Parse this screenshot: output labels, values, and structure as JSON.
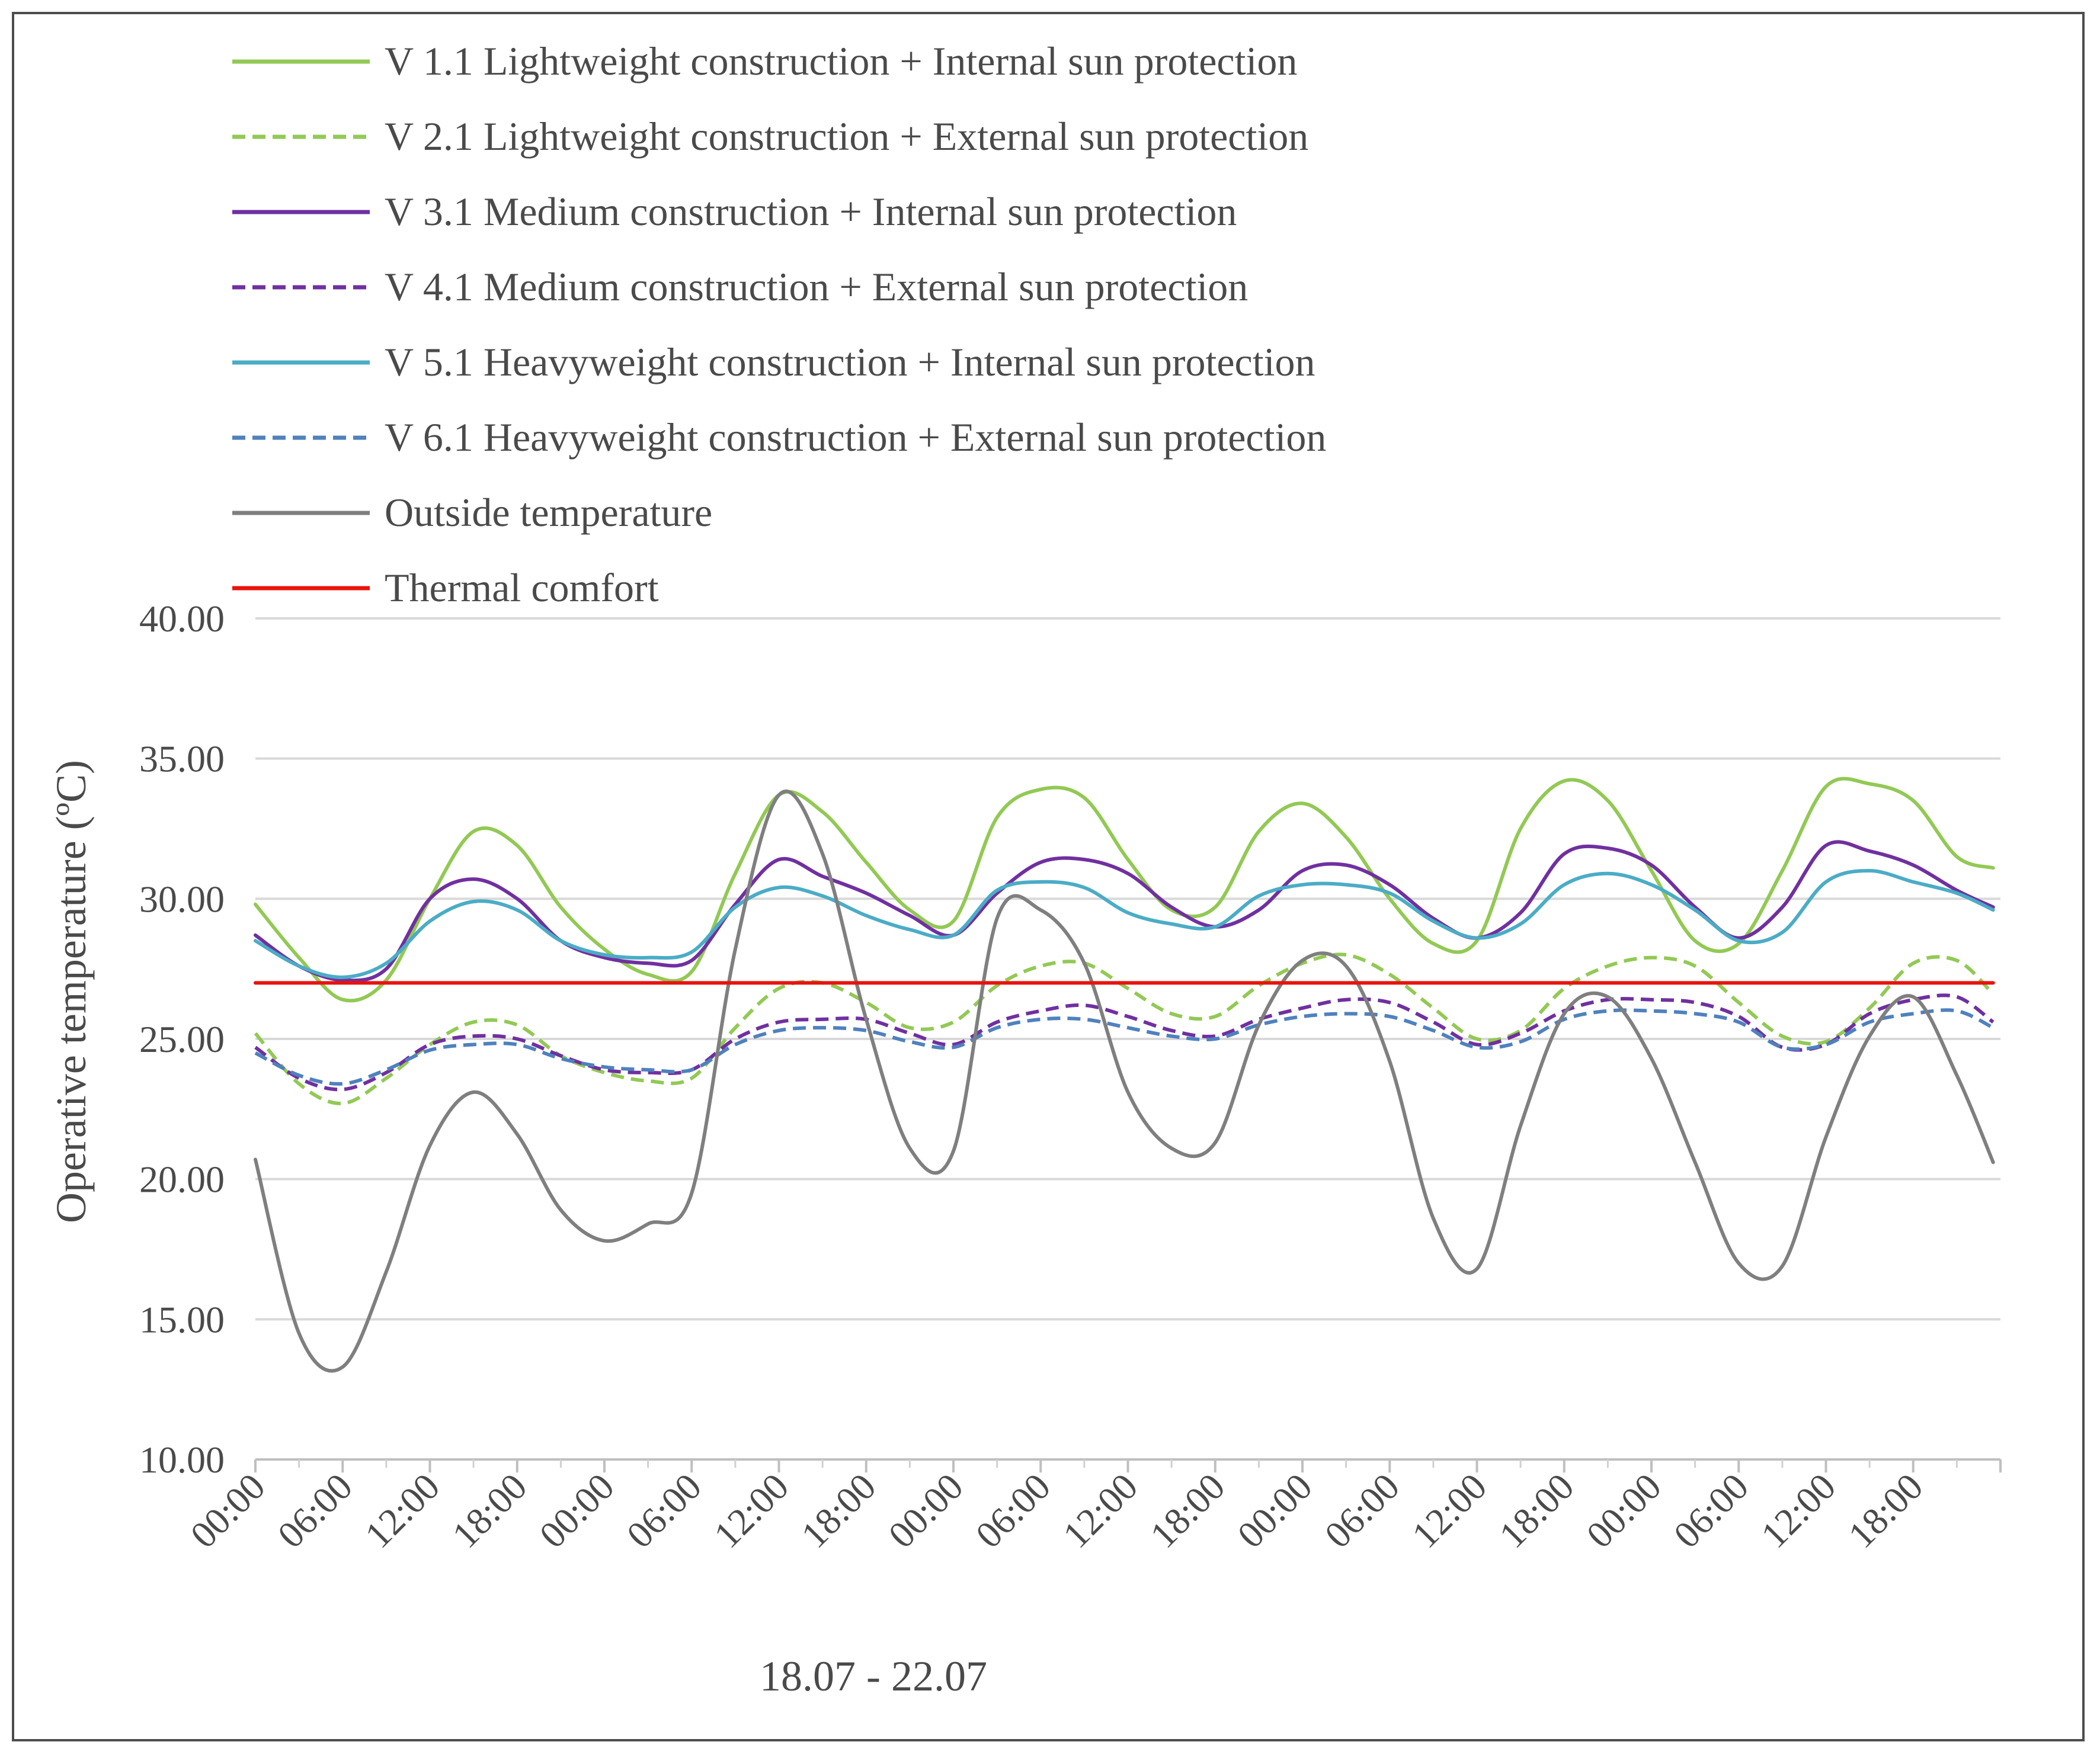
{
  "chart_data": {
    "type": "line",
    "title": "",
    "xlabel": "18.07 - 22.07",
    "ylabel": "Operative temperature (ºC)",
    "ylim": [
      10,
      40
    ],
    "yticks": [
      "10.00",
      "15.00",
      "20.00",
      "25.00",
      "30.00",
      "35.00",
      "40.00"
    ],
    "ytick_values": [
      10,
      15,
      20,
      25,
      30,
      35,
      40
    ],
    "xticks": [
      "00:00",
      "06:00",
      "12:00",
      "18:00",
      "00:00",
      "06:00",
      "12:00",
      "18:00",
      "00:00",
      "06:00",
      "12:00",
      "18:00",
      "00:00",
      "06:00",
      "12:00",
      "18:00",
      "00:00",
      "06:00",
      "12:00",
      "18:00"
    ],
    "xtick_hours": [
      0,
      6,
      12,
      18,
      24,
      30,
      36,
      42,
      48,
      54,
      60,
      66,
      72,
      78,
      84,
      90,
      96,
      102,
      108,
      114
    ],
    "xlim": [
      0,
      120
    ],
    "grid": true,
    "legend_position": "top-left",
    "series": [
      {
        "name": "V 1.1 Lightweight construction + Internal sun protection",
        "color": "#92c954",
        "dash": "solid",
        "x": [
          0,
          3,
          6,
          9,
          12,
          15,
          18,
          21,
          24,
          27,
          30,
          33,
          36,
          39,
          42,
          45,
          48,
          51,
          54,
          57,
          60,
          63,
          66,
          69,
          72,
          75,
          78,
          81,
          84,
          87,
          90,
          93,
          96,
          99,
          102,
          105,
          108,
          111,
          114,
          117,
          119.5
        ],
        "values": [
          29.8,
          27.9,
          26.4,
          27.1,
          30.0,
          32.4,
          31.9,
          29.7,
          28.2,
          27.3,
          27.4,
          30.9,
          33.7,
          33.1,
          31.3,
          29.6,
          29.2,
          32.9,
          33.9,
          33.6,
          31.4,
          29.6,
          29.7,
          32.4,
          33.4,
          32.2,
          30.0,
          28.4,
          28.5,
          32.5,
          34.2,
          33.5,
          31.0,
          28.5,
          28.4,
          31.0,
          34.0,
          34.1,
          33.5,
          31.5,
          31.1
        ]
      },
      {
        "name": "V 2.1 Lightweight construction + External sun protection",
        "color": "#92c954",
        "dash": "dashed",
        "x": [
          0,
          3,
          6,
          9,
          12,
          15,
          18,
          21,
          24,
          27,
          30,
          33,
          36,
          39,
          42,
          45,
          48,
          51,
          54,
          57,
          60,
          63,
          66,
          69,
          72,
          75,
          78,
          81,
          84,
          87,
          90,
          93,
          96,
          99,
          102,
          105,
          108,
          111,
          114,
          117,
          119.5
        ],
        "values": [
          25.2,
          23.4,
          22.7,
          23.6,
          24.8,
          25.6,
          25.5,
          24.4,
          23.8,
          23.5,
          23.6,
          25.4,
          26.8,
          27.0,
          26.3,
          25.4,
          25.6,
          26.9,
          27.6,
          27.7,
          26.8,
          25.9,
          25.8,
          26.9,
          27.7,
          28.0,
          27.3,
          26.1,
          25.0,
          25.3,
          26.8,
          27.6,
          27.9,
          27.6,
          26.3,
          25.1,
          24.9,
          26.1,
          27.7,
          27.8,
          26.6
        ]
      },
      {
        "name": "V 3.1 Medium construction + Internal sun protection",
        "color": "#7030a0",
        "dash": "solid",
        "x": [
          0,
          3,
          6,
          9,
          12,
          15,
          18,
          21,
          24,
          27,
          30,
          33,
          36,
          39,
          42,
          45,
          48,
          51,
          54,
          57,
          60,
          63,
          66,
          69,
          72,
          75,
          78,
          81,
          84,
          87,
          90,
          93,
          96,
          99,
          102,
          105,
          108,
          111,
          114,
          117,
          119.5
        ],
        "values": [
          28.7,
          27.6,
          27.1,
          27.5,
          30.0,
          30.7,
          30.0,
          28.5,
          27.9,
          27.7,
          27.8,
          29.8,
          31.4,
          30.8,
          30.2,
          29.4,
          28.7,
          30.2,
          31.3,
          31.4,
          30.9,
          29.7,
          29.0,
          29.6,
          31.0,
          31.2,
          30.5,
          29.3,
          28.6,
          29.5,
          31.6,
          31.8,
          31.2,
          29.7,
          28.6,
          29.7,
          31.9,
          31.7,
          31.2,
          30.3,
          29.7
        ]
      },
      {
        "name": "V 4.1 Medium construction + External sun protection",
        "color": "#7030a0",
        "dash": "dashed",
        "x": [
          0,
          3,
          6,
          9,
          12,
          15,
          18,
          21,
          24,
          27,
          30,
          33,
          36,
          39,
          42,
          45,
          48,
          51,
          54,
          57,
          60,
          63,
          66,
          69,
          72,
          75,
          78,
          81,
          84,
          87,
          90,
          93,
          96,
          99,
          102,
          105,
          108,
          111,
          114,
          117,
          119.5
        ],
        "values": [
          24.7,
          23.6,
          23.2,
          23.8,
          24.8,
          25.1,
          25.0,
          24.4,
          23.9,
          23.8,
          23.9,
          25.0,
          25.6,
          25.7,
          25.7,
          25.2,
          24.8,
          25.6,
          26.0,
          26.2,
          25.8,
          25.3,
          25.1,
          25.7,
          26.1,
          26.4,
          26.3,
          25.6,
          24.8,
          25.2,
          26.0,
          26.4,
          26.4,
          26.3,
          25.8,
          24.7,
          24.8,
          25.9,
          26.4,
          26.5,
          25.6
        ]
      },
      {
        "name": "V 5.1 Heavyweight construction + Internal sun protection",
        "color": "#4bacc6",
        "dash": "solid",
        "x": [
          0,
          3,
          6,
          9,
          12,
          15,
          18,
          21,
          24,
          27,
          30,
          33,
          36,
          39,
          42,
          45,
          48,
          51,
          54,
          57,
          60,
          63,
          66,
          69,
          72,
          75,
          78,
          81,
          84,
          87,
          90,
          93,
          96,
          99,
          102,
          105,
          108,
          111,
          114,
          117,
          119.5
        ],
        "values": [
          28.5,
          27.6,
          27.2,
          27.7,
          29.2,
          29.9,
          29.6,
          28.5,
          28.0,
          27.9,
          28.1,
          29.7,
          30.4,
          30.1,
          29.4,
          28.9,
          28.7,
          30.3,
          30.6,
          30.4,
          29.5,
          29.1,
          29.0,
          30.1,
          30.5,
          30.5,
          30.2,
          29.2,
          28.6,
          29.1,
          30.5,
          30.9,
          30.5,
          29.6,
          28.5,
          28.8,
          30.6,
          31.0,
          30.6,
          30.2,
          29.6
        ]
      },
      {
        "name": "V 6.1 Heavyweight construction + External sun protection",
        "color": "#4f81bd",
        "dash": "dashed",
        "x": [
          0,
          3,
          6,
          9,
          12,
          15,
          18,
          21,
          24,
          27,
          30,
          33,
          36,
          39,
          42,
          45,
          48,
          51,
          54,
          57,
          60,
          63,
          66,
          69,
          72,
          75,
          78,
          81,
          84,
          87,
          90,
          93,
          96,
          99,
          102,
          105,
          108,
          111,
          114,
          117,
          119.5
        ],
        "values": [
          24.5,
          23.7,
          23.4,
          23.9,
          24.6,
          24.8,
          24.8,
          24.3,
          24.0,
          23.9,
          23.9,
          24.8,
          25.3,
          25.4,
          25.3,
          24.9,
          24.7,
          25.4,
          25.7,
          25.7,
          25.4,
          25.1,
          25.0,
          25.5,
          25.8,
          25.9,
          25.8,
          25.3,
          24.7,
          24.9,
          25.7,
          26.0,
          26.0,
          25.9,
          25.6,
          24.7,
          24.8,
          25.6,
          25.9,
          26.0,
          25.4
        ]
      },
      {
        "name": "Outside temperature",
        "color": "#7f7f7f",
        "dash": "solid",
        "x": [
          0,
          3,
          6,
          9,
          12,
          15,
          18,
          21,
          24,
          27,
          30,
          33,
          36,
          39,
          42,
          45,
          48,
          51,
          54,
          57,
          60,
          63,
          66,
          69,
          72,
          75,
          78,
          81,
          84,
          87,
          90,
          93,
          96,
          99,
          102,
          105,
          108,
          111,
          114,
          117,
          119.5
        ],
        "values": [
          20.7,
          14.5,
          13.3,
          16.7,
          21.2,
          23.1,
          21.6,
          18.9,
          17.8,
          18.4,
          19.5,
          28.2,
          33.7,
          31.6,
          25.7,
          21.1,
          21.0,
          29.3,
          29.6,
          27.7,
          23.1,
          21.1,
          21.3,
          25.5,
          27.8,
          27.6,
          24.2,
          18.6,
          16.8,
          21.9,
          25.9,
          26.5,
          24.3,
          20.6,
          17.0,
          16.9,
          21.5,
          25.1,
          26.5,
          23.7,
          20.6
        ]
      },
      {
        "name": "Thermal comfort",
        "color": "#e8130e",
        "dash": "solid",
        "x": [
          0,
          119.5
        ],
        "values": [
          27.0,
          27.0
        ]
      }
    ]
  }
}
